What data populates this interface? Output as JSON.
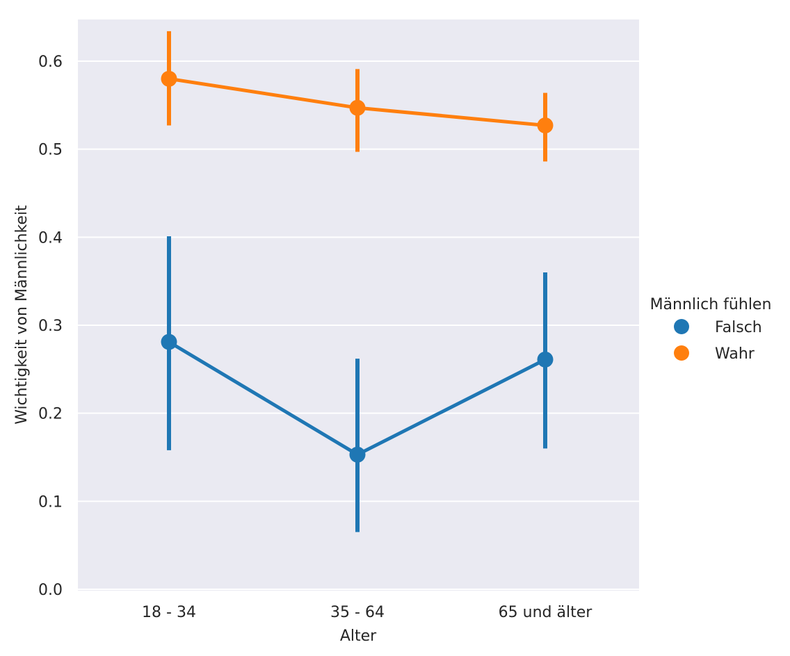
{
  "chart_data": {
    "type": "line",
    "style": "point plot with error bars",
    "title": "",
    "xlabel": "Alter",
    "ylabel": "Wichtigkeit von Männlichkeit",
    "categories": [
      "18 - 34",
      "35 - 64",
      "65 und älter"
    ],
    "ylim": [
      0.0,
      0.65
    ],
    "yticks": [
      0.0,
      0.1,
      0.2,
      0.3,
      0.4,
      0.5,
      0.6
    ],
    "ytick_labels": [
      "0.0",
      "0.1",
      "0.2",
      "0.3",
      "0.4",
      "0.5",
      "0.6"
    ],
    "grid": true,
    "legend": {
      "title": "Männlich fühlen",
      "placement": "right"
    },
    "series": [
      {
        "name": "Falsch",
        "color": "#1f77b4",
        "values": [
          0.281,
          0.153,
          0.261
        ],
        "ci_low": [
          0.158,
          0.065,
          0.16
        ],
        "ci_high": [
          0.401,
          0.262,
          0.36
        ]
      },
      {
        "name": "Wahr",
        "color": "#ff7f0e",
        "values": [
          0.58,
          0.547,
          0.527
        ],
        "ci_low": [
          0.527,
          0.497,
          0.486
        ],
        "ci_high": [
          0.634,
          0.591,
          0.564
        ]
      }
    ]
  }
}
